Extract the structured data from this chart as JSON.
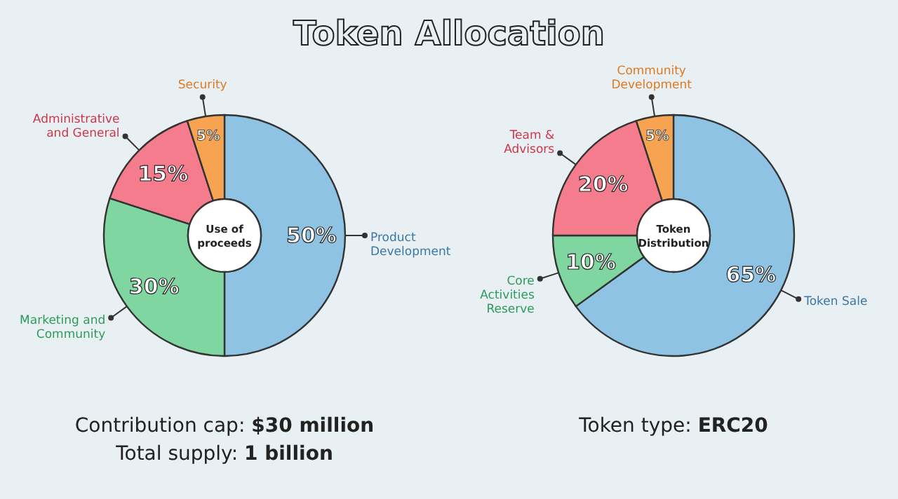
{
  "chart_data": [
    {
      "type": "donut",
      "title": "Use of proceeds",
      "categories": [
        "Product Development",
        "Marketing and Community",
        "Administrative and General",
        "Security"
      ],
      "values": [
        50,
        30,
        15,
        5
      ],
      "value_labels": [
        "50%",
        "30%",
        "15%",
        "5%"
      ],
      "colors": [
        "#8ec3e3",
        "#7fd6a1",
        "#f47c8c",
        "#f6a352"
      ],
      "annotations": [
        "Token Allocation",
        "Contribution cap: $30 million",
        "Total supply: 1 billion"
      ]
    },
    {
      "type": "donut",
      "title": "Token Distribution",
      "categories": [
        "Token Sale",
        "Core Activities Reserve",
        "Team & Advisors",
        "Community Development"
      ],
      "values": [
        65,
        10,
        20,
        5
      ],
      "value_labels": [
        "65%",
        "10%",
        "20%",
        "5%"
      ],
      "colors": [
        "#8ec3e3",
        "#7fd6a1",
        "#f47c8c",
        "#f6a352"
      ],
      "annotations": [
        "Token type: ERC20"
      ]
    }
  ]
}
